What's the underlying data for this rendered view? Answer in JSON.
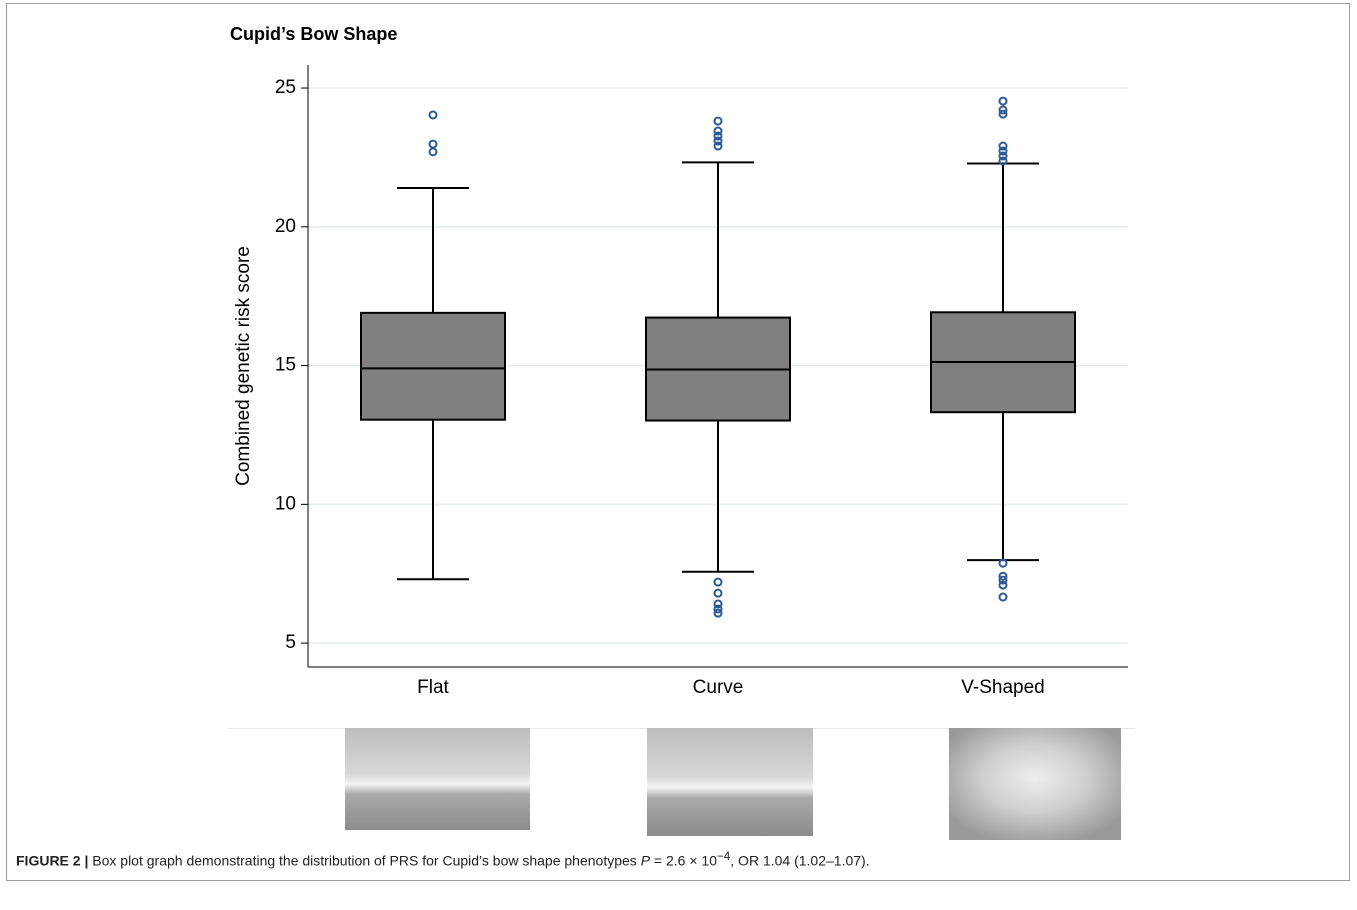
{
  "chart_data": {
    "type": "box",
    "title": "Cupid’s Bow Shape",
    "ylabel": "Combined genetic risk score",
    "categories": [
      "Flat",
      "Curve",
      "V-Shaped"
    ],
    "boxes": [
      {
        "whisker_low": 7.3,
        "q1": 13.05,
        "median": 14.9,
        "q3": 16.9,
        "whisker_high": 21.4,
        "outliers": [
          22.7,
          22.98,
          24.03
        ]
      },
      {
        "whisker_low": 7.57,
        "q1": 13.02,
        "median": 14.86,
        "q3": 16.73,
        "whisker_high": 22.32,
        "outliers": [
          23.81,
          23.45,
          23.27,
          23.09,
          22.91,
          7.2,
          6.8,
          6.41,
          6.23,
          6.08
        ]
      },
      {
        "whisker_low": 7.99,
        "q1": 13.32,
        "median": 15.13,
        "q3": 16.92,
        "whisker_high": 22.28,
        "outliers": [
          24.53,
          24.21,
          24.06,
          22.91,
          22.73,
          22.55,
          22.37,
          7.88,
          7.41,
          7.27,
          7.09,
          6.66
        ]
      }
    ],
    "box_color": "#7f7f7f",
    "outlier_color": "#2b5a94",
    "ylim": [
      4.14,
      25.83
    ],
    "yticks": [
      5,
      10,
      15,
      20,
      25
    ],
    "grid": true
  },
  "caption": {
    "label": "FIGURE 2 |",
    "text": "Box plot graph demonstrating the distribution of PRS for Cupid’s bow shape phenotypes",
    "p_symbol": "P",
    "p_value": "= 2.6 × 10",
    "p_exponent": "−4",
    "tail": ", OR 1.04 (1.02–1.07)."
  }
}
